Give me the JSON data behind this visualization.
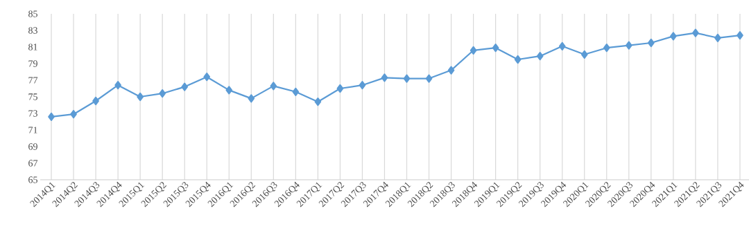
{
  "chart_data": {
    "type": "line",
    "categories": [
      "2014Q1",
      "2014Q2",
      "2014Q3",
      "2014Q4",
      "2015Q1",
      "2015Q2",
      "2015Q3",
      "2015Q4",
      "2016Q1",
      "2016Q2",
      "2016Q3",
      "2016Q4",
      "2017Q1",
      "2017Q2",
      "2017Q3",
      "2017Q4",
      "2018Q1",
      "2018Q2",
      "2018Q3",
      "2018Q4",
      "2019Q1",
      "2019Q2",
      "2019Q3",
      "2019Q4",
      "2020Q1",
      "2020Q2",
      "2020Q3",
      "2020Q4",
      "2021Q1",
      "2021Q2",
      "2021Q3",
      "2021Q4"
    ],
    "values": [
      72.6,
      72.9,
      74.5,
      76.4,
      75.0,
      75.4,
      76.2,
      77.4,
      75.8,
      74.8,
      76.3,
      75.6,
      74.4,
      76.0,
      76.4,
      77.3,
      77.2,
      77.2,
      78.2,
      80.6,
      80.9,
      79.5,
      79.9,
      81.1,
      80.1,
      80.9,
      81.2,
      81.5,
      82.3,
      82.7,
      82.1,
      82.4
    ],
    "color": "#5b9bd5",
    "marker": "diamond",
    "line_style": "solid",
    "grid": "x",
    "ylim": [
      65,
      85
    ],
    "yticks": [
      65,
      67,
      69,
      71,
      73,
      75,
      77,
      79,
      81,
      83,
      85
    ]
  }
}
